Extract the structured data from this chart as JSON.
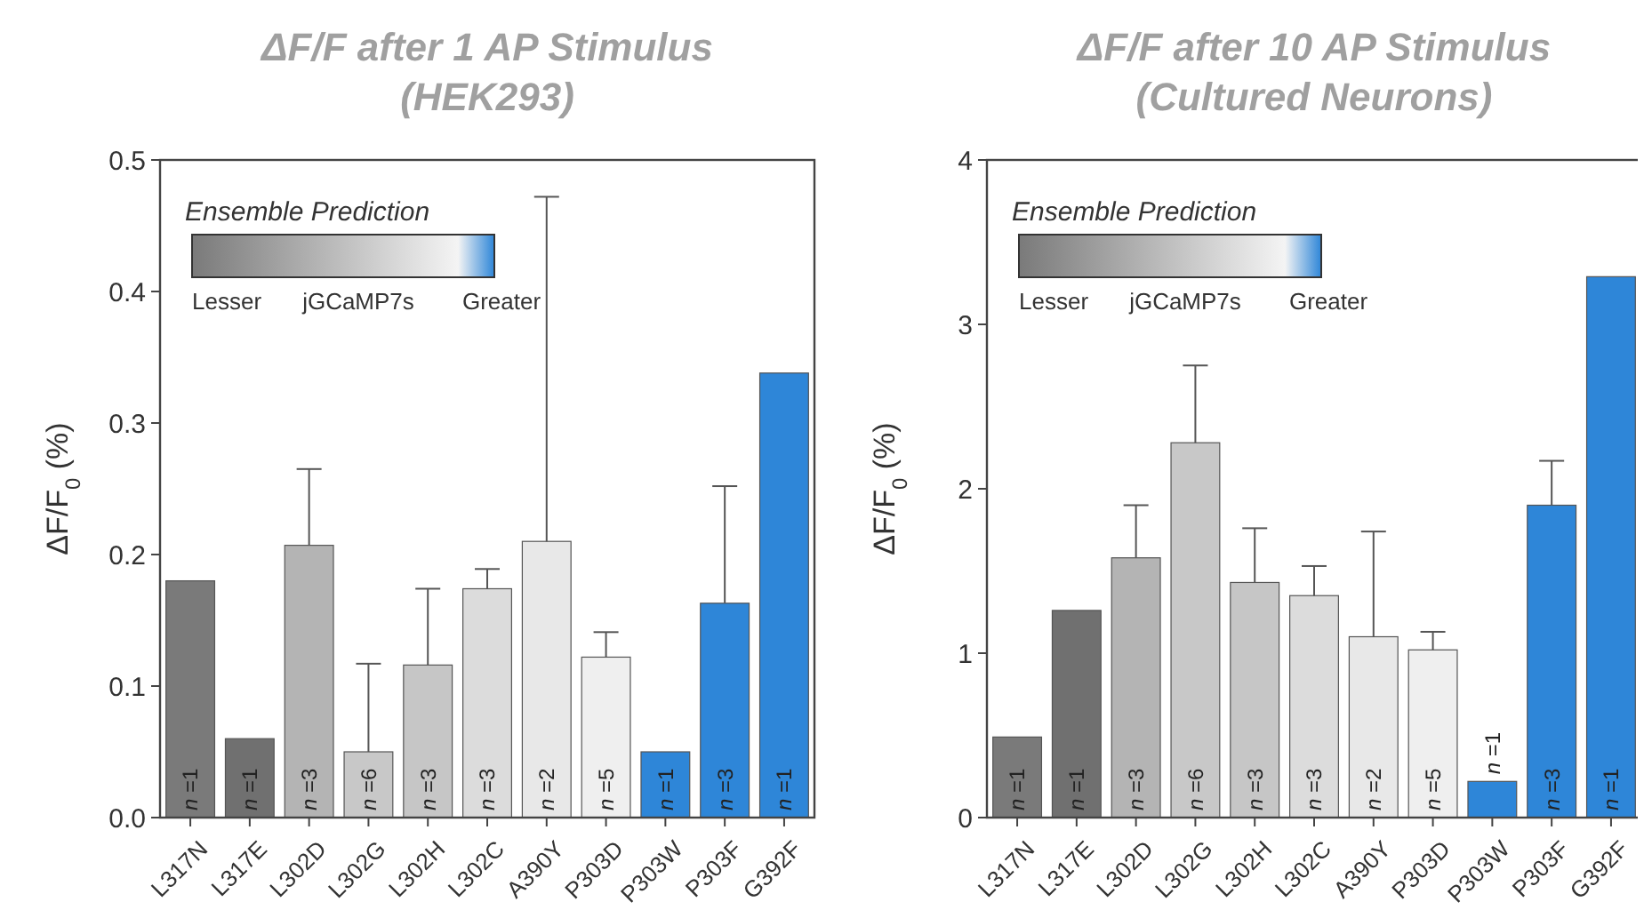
{
  "chart_data": [
    {
      "type": "bar",
      "title": "ΔF/F after 1 AP Stimulus\n(HEK293)",
      "ylabel": "ΔF/F$_{0}$ (%)",
      "legend_title": "Ensemble Prediction",
      "categories": [
        "L317N",
        "L317E",
        "L302D",
        "L302G",
        "L302H",
        "L302C",
        "A390Y",
        "P303D",
        "P303W",
        "P303F",
        "G392F"
      ],
      "values": [
        0.18,
        0.06,
        0.207,
        0.05,
        0.116,
        0.174,
        0.21,
        0.122,
        0.05,
        0.163,
        0.338
      ],
      "errors": [
        null,
        null,
        [
          0.207,
          0.265
        ],
        [
          0.05,
          0.117
        ],
        [
          0.116,
          0.174
        ],
        [
          0.174,
          0.189
        ],
        [
          0.21,
          0.472
        ],
        [
          0.122,
          0.141
        ],
        null,
        [
          0.163,
          0.252
        ],
        null
      ],
      "colors": [
        "#7a7a7a",
        "#707070",
        "#b4b4b4",
        "#c8c8c8",
        "#c6c6c6",
        "#dcdcdc",
        "#e8e8e8",
        "#efefef",
        "#2e86d8",
        "#2e86d8",
        "#2e86d8"
      ],
      "ylim": [
        0,
        0.5
      ],
      "yticks": [
        {
          "value": 0,
          "label": "0.0"
        },
        0.1,
        0.2,
        0.3,
        0.4,
        0.5
      ],
      "annotations": [
        "Lesser",
        "jGCaMP7s",
        "Greater",
        "n =1",
        "n =1",
        "n =3",
        "n =6",
        "n =3",
        "n =3",
        "n =2",
        "n =5",
        "n =1",
        "n =3",
        "n =1"
      ]
    },
    {
      "type": "bar",
      "title": "ΔF/F after 10 AP Stimulus\n(Cultured Neurons)",
      "ylabel": "ΔF/F$_{0}$ (%)",
      "legend_title": "Ensemble Prediction",
      "categories": [
        "L317N",
        "L317E",
        "L302D",
        "L302G",
        "L302H",
        "L302C",
        "A390Y",
        "P303D",
        "P303W",
        "P303F",
        "G392F"
      ],
      "values": [
        0.49,
        1.26,
        1.58,
        2.28,
        1.43,
        1.35,
        1.1,
        1.02,
        0.22,
        1.9,
        3.29
      ],
      "errors": [
        null,
        null,
        [
          1.58,
          1.9
        ],
        [
          2.28,
          2.75
        ],
        [
          1.43,
          1.76
        ],
        [
          1.35,
          1.53
        ],
        [
          1.1,
          1.74
        ],
        [
          1.02,
          1.13
        ],
        null,
        [
          1.9,
          2.17
        ],
        null
      ],
      "colors": [
        "#7a7a7a",
        "#707070",
        "#b4b4b4",
        "#c8c8c8",
        "#c6c6c6",
        "#dcdcdc",
        "#e8e8e8",
        "#efefef",
        "#2e86d8",
        "#2e86d8",
        "#2e86d8"
      ],
      "ylim": [
        0,
        4
      ],
      "yticks": [
        0,
        1,
        2,
        3,
        4
      ],
      "annotations": [
        "Lesser",
        "jGCaMP7s",
        "Greater",
        "n =1",
        "n =1",
        "n =3",
        "n =6",
        "n =3",
        "n =3",
        "n =2",
        "n =5",
        "n =1",
        "n =3",
        "n =1"
      ]
    }
  ]
}
